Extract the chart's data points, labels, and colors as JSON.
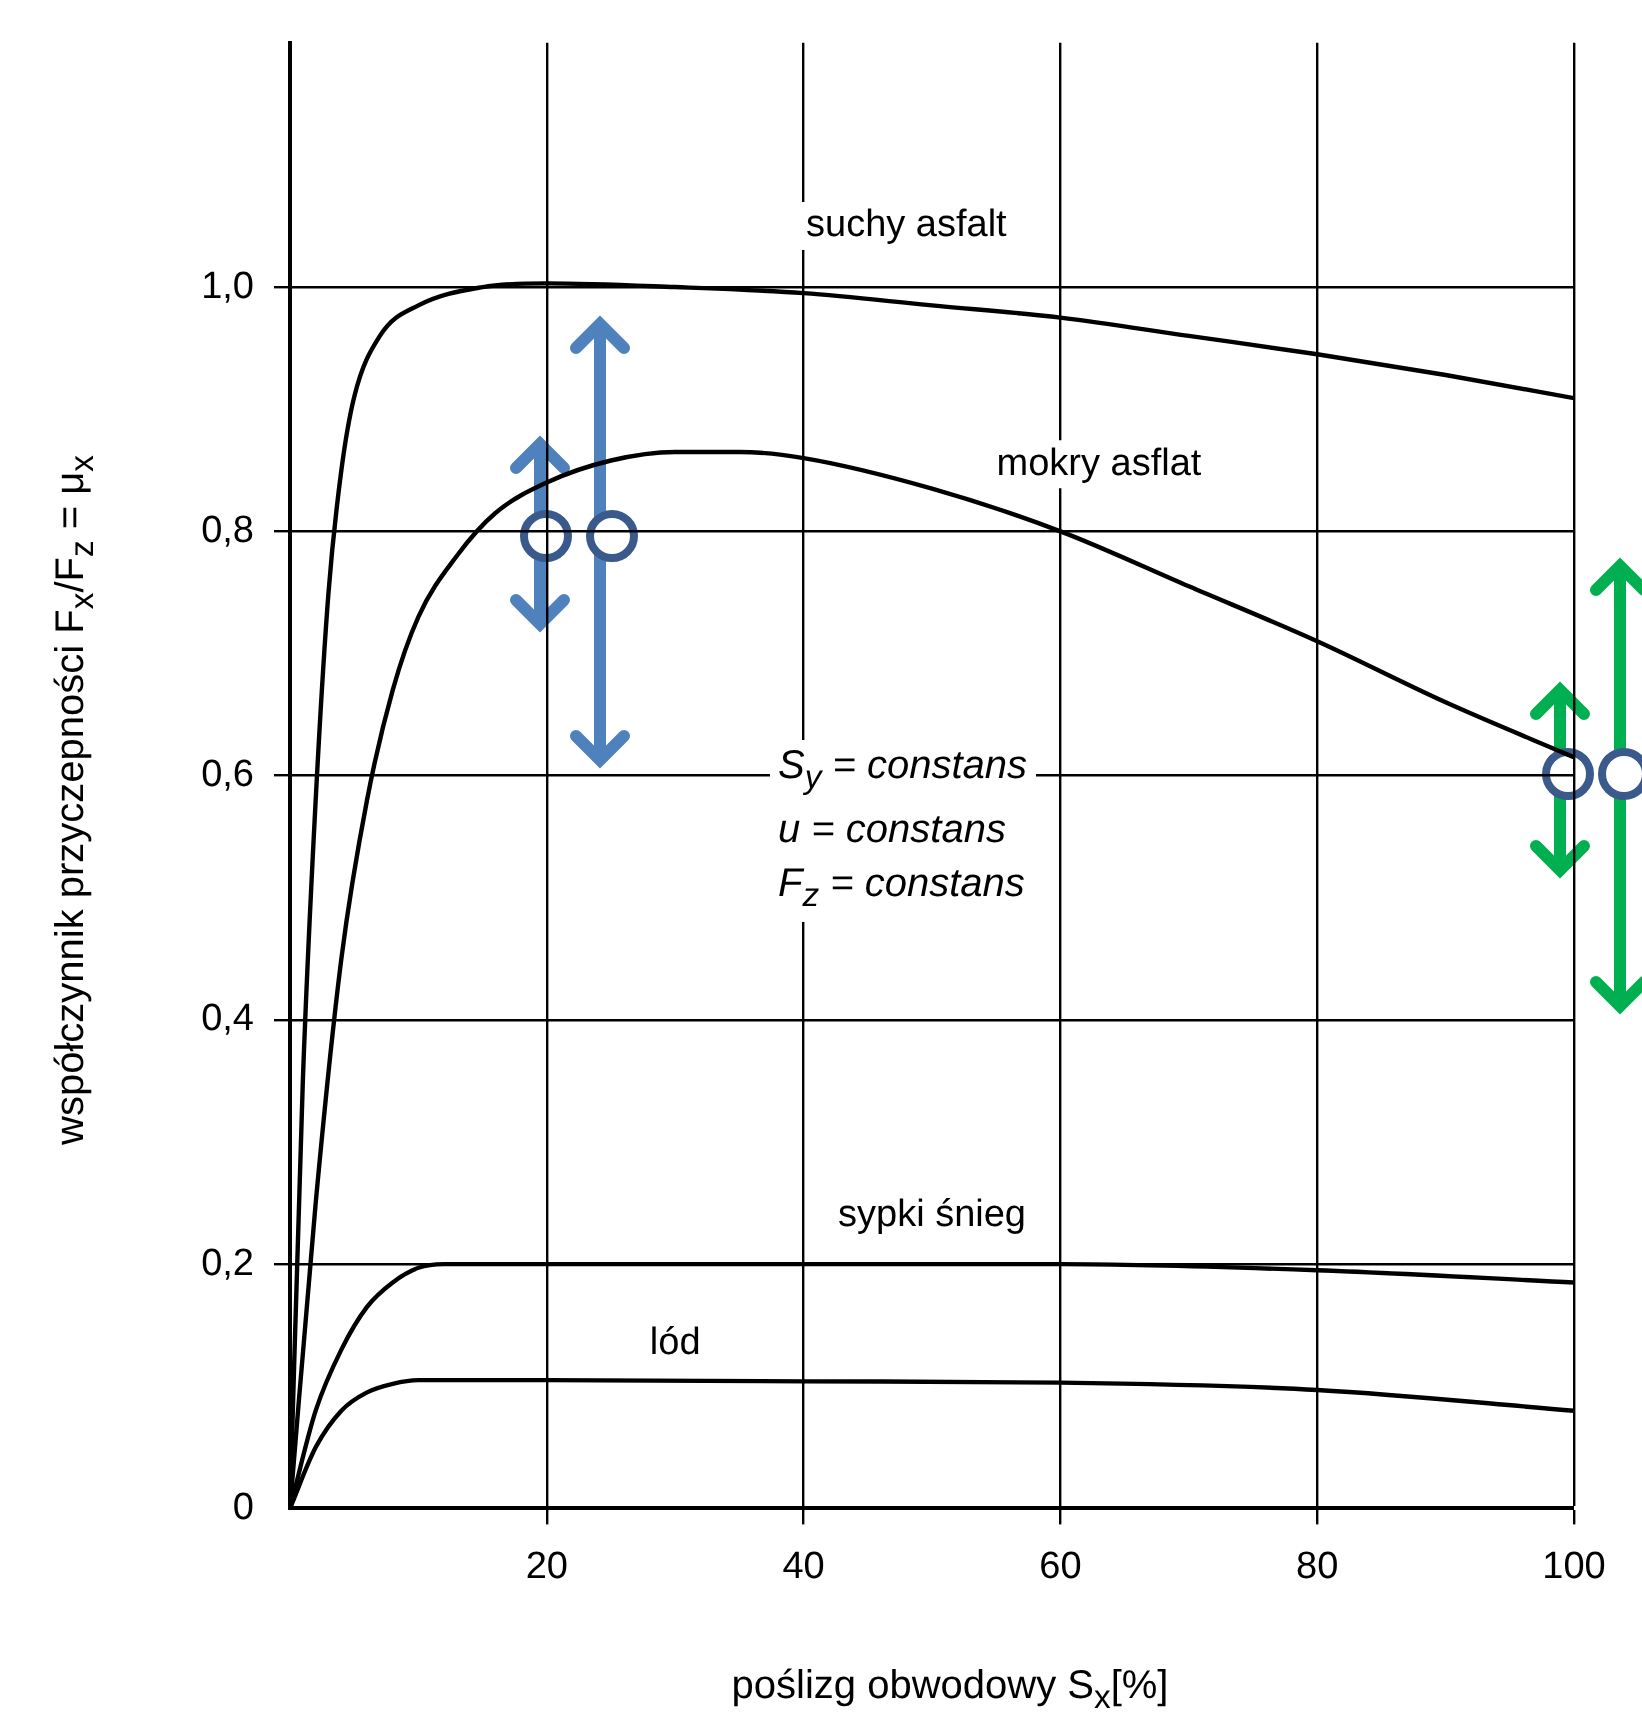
{
  "chart_data": {
    "type": "line",
    "xlabel": "poślizg obwodowy S$_{x}$[%]",
    "ylabel": "współczynnik przyczepności F$_{x}$/F$_{z}$ = μ$_{x}$",
    "xlim": [
      0,
      100
    ],
    "xticks": [
      {
        "value": 0,
        "label": null
      },
      20,
      40,
      60,
      80,
      100
    ],
    "ylim": [
      0,
      1.2
    ],
    "yticks": [
      0,
      {
        "value": 0.2,
        "label": "0,2"
      },
      {
        "value": 0.4,
        "label": "0,4"
      },
      {
        "value": 0.6,
        "label": "0,6"
      },
      {
        "value": 0.8,
        "label": "0,8"
      },
      {
        "value": 1,
        "label": "1,0"
      }
    ],
    "grid": true,
    "legend": false,
    "marker": "none",
    "line_style": "solid",
    "annotations": [
      "S$_{y}$ = constans",
      "u = constans",
      "F$_{z}$ = constans"
    ],
    "series": [
      {
        "name": "suchy asfalt",
        "color": "#000000",
        "x": [
          0,
          1,
          2,
          3,
          4,
          5,
          7,
          10,
          15,
          20,
          30,
          40,
          50,
          60,
          70,
          80,
          90,
          100
        ],
        "values": [
          0,
          0.35,
          0.58,
          0.75,
          0.85,
          0.91,
          0.96,
          0.985,
          1.0,
          1.003,
          1.0,
          0.995,
          0.985,
          0.975,
          0.96,
          0.945,
          0.928,
          0.909
        ]
      },
      {
        "name": "mokry asflat",
        "color": "#000000",
        "x": [
          0,
          2,
          4,
          6,
          8,
          10,
          13,
          16,
          20,
          25,
          30,
          35,
          40,
          50,
          60,
          70,
          80,
          90,
          100
        ],
        "values": [
          0,
          0.25,
          0.45,
          0.58,
          0.67,
          0.73,
          0.78,
          0.815,
          0.84,
          0.858,
          0.865,
          0.865,
          0.86,
          0.835,
          0.8,
          0.755,
          0.71,
          0.66,
          0.615
        ]
      },
      {
        "name": "sypki śnieg",
        "color": "#000000",
        "x": [
          0,
          2,
          4,
          6,
          8,
          10,
          12,
          20,
          40,
          60,
          80,
          100
        ],
        "values": [
          0,
          0.08,
          0.13,
          0.165,
          0.185,
          0.197,
          0.2,
          0.2,
          0.2,
          0.2,
          0.195,
          0.185
        ]
      },
      {
        "name": "lód",
        "color": "#000000",
        "x": [
          0,
          2,
          4,
          6,
          8,
          10,
          20,
          40,
          60,
          80,
          100
        ],
        "values": [
          0,
          0.05,
          0.08,
          0.095,
          0.102,
          0.105,
          0.105,
          0.104,
          0.103,
          0.097,
          0.08
        ]
      }
    ]
  }
}
